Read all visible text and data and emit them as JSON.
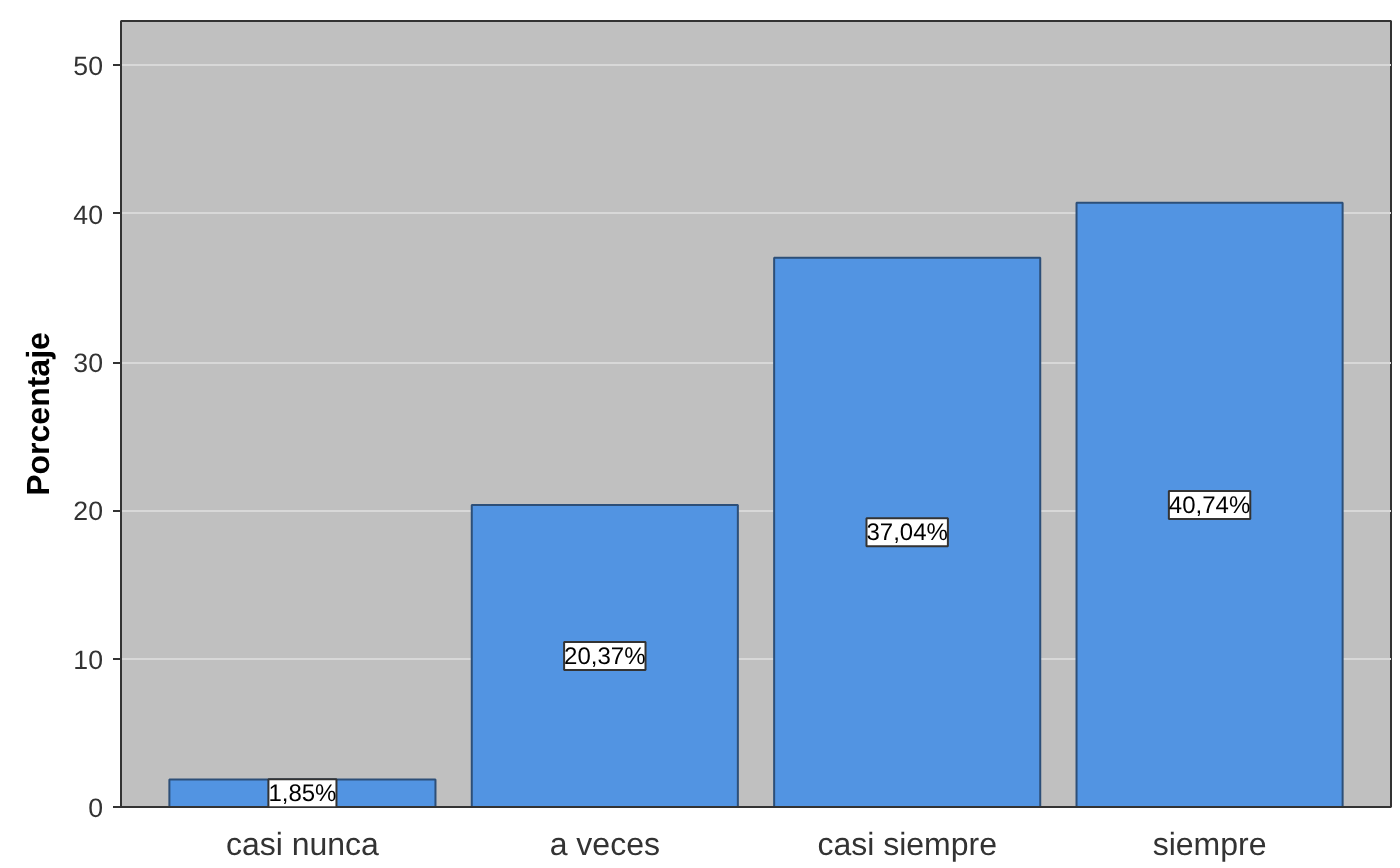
{
  "chart_data": {
    "type": "bar",
    "ylabel": "Porcentaje",
    "categories": [
      "casi nunca",
      "a veces",
      "casi siempre",
      "siempre"
    ],
    "values": [
      1.85,
      20.37,
      37.04,
      40.74
    ],
    "value_labels": [
      "1,85%",
      "20,37%",
      "37,04%",
      "40,74%"
    ],
    "color": "#5294e2",
    "ylim": [
      0,
      53
    ],
    "yticks": [
      0,
      10,
      20,
      30,
      40,
      50
    ],
    "grid": "y"
  }
}
